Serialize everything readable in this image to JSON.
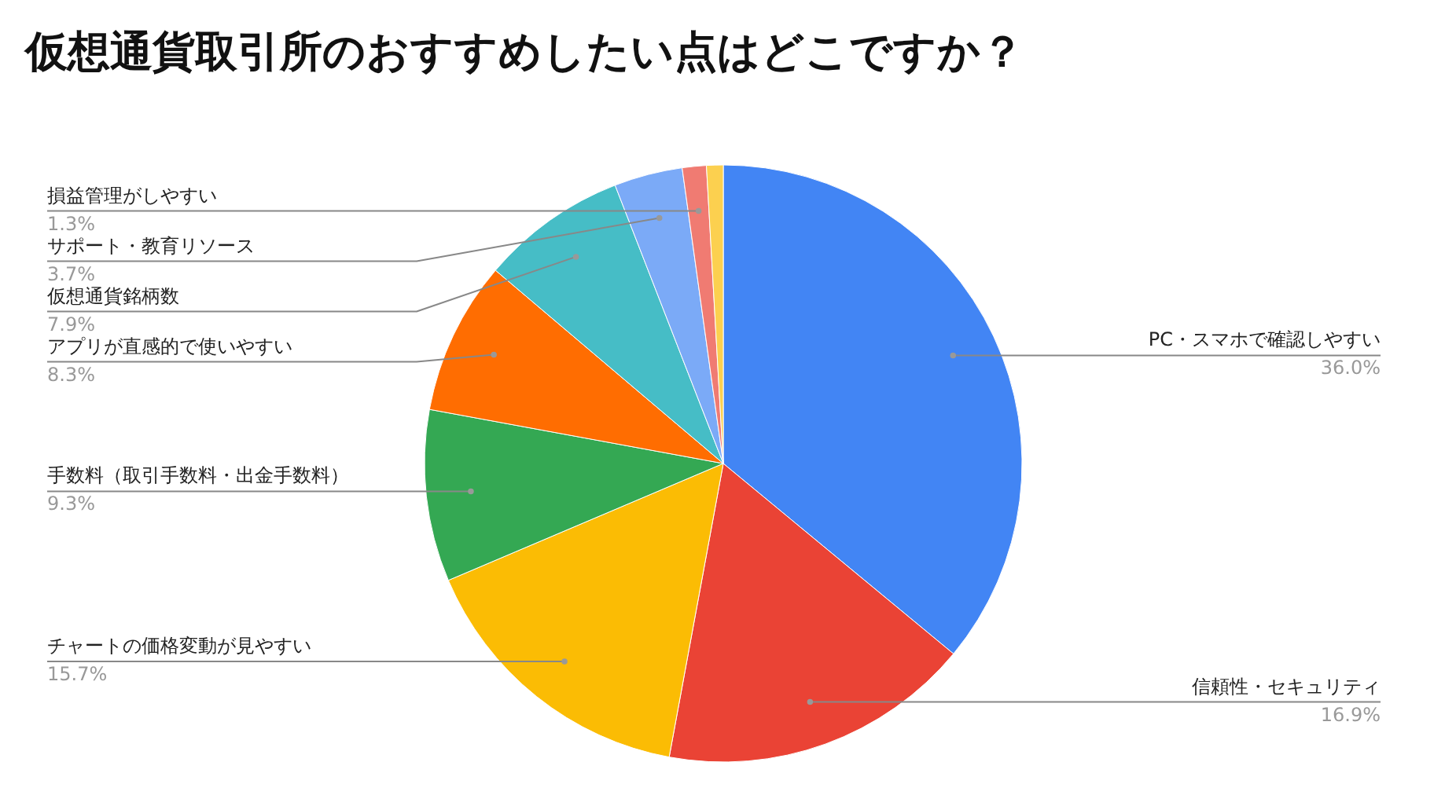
{
  "chart_data": {
    "type": "pie",
    "title": "仮想通貨取引所のおすすめしたい点はどこですか？",
    "categories": [
      "PC・スマホで確認しやすい",
      "信頼性・セキュリティ",
      "チャートの価格変動が見やすい",
      "手数料（取引手数料・出金手数料）",
      "アプリが直感的で使いやすい",
      "仮想通貨銘柄数",
      "サポート・教育リソース",
      "損益管理がしやすい",
      null
    ],
    "values": [
      36.0,
      16.9,
      15.7,
      9.3,
      8.3,
      7.9,
      3.7,
      1.3,
      0.9
    ],
    "colors": [
      "#4285f4",
      "#ea4335",
      "#fbbc04",
      "#34a853",
      "#ff6d01",
      "#46bdc6",
      "#7baaf7",
      "#f07b72",
      "#fcd04f"
    ],
    "value_labels": [
      "36.0%",
      "16.9%",
      "15.7%",
      "9.3%",
      "8.3%",
      "7.9%",
      "3.7%",
      "1.3%",
      null
    ]
  }
}
